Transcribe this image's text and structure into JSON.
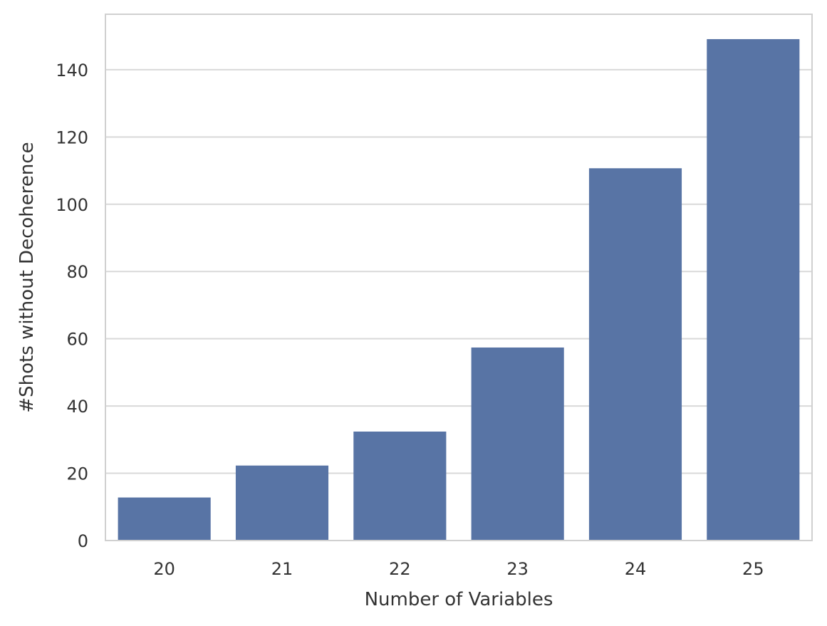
{
  "chart_data": {
    "type": "bar",
    "categories": [
      "20",
      "21",
      "22",
      "23",
      "24",
      "25"
    ],
    "values": [
      12.8,
      22.3,
      32.4,
      57.4,
      110.7,
      149.1
    ],
    "title": "",
    "xlabel": "Number of Variables",
    "ylabel": "#Shots without Decoherence",
    "ylim": [
      0,
      156.5
    ],
    "yticks": [
      0,
      20,
      40,
      60,
      80,
      100,
      120,
      140
    ],
    "grid": "horizontal",
    "legend": "none",
    "colors": {
      "bar": "#5874a5",
      "grid": "#d9d9d9",
      "spine": "#d0d0d0",
      "text": "#333333"
    }
  }
}
